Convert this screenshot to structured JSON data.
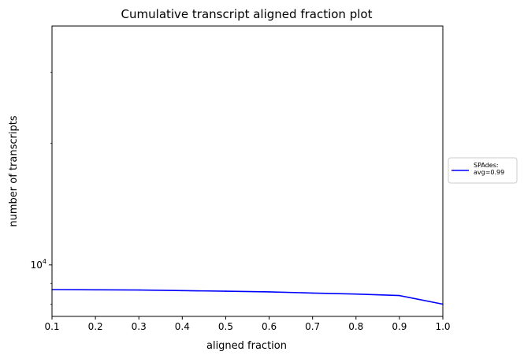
{
  "chart_data": {
    "type": "line",
    "title": "Cumulative transcript aligned fraction plot",
    "xlabel": "aligned fraction",
    "ylabel": "number of transcripts",
    "x": [
      0.1,
      0.2,
      0.3,
      0.4,
      0.5,
      0.6,
      0.7,
      0.8,
      0.9,
      1.0
    ],
    "xlim": [
      0.1,
      1.0
    ],
    "x_ticks": [
      "0.1",
      "0.2",
      "0.3",
      "0.4",
      "0.5",
      "0.6",
      "0.7",
      "0.8",
      "0.9",
      "1.0"
    ],
    "y_scale": "log",
    "ylim": [
      7460,
      39000
    ],
    "y_ticks": [
      {
        "value": 10000,
        "base": "10",
        "exp": "4"
      }
    ],
    "series": [
      {
        "name": "SPAdes:\navg=0.99",
        "legend_lines": [
          "SPAdes:",
          "avg=0.99"
        ],
        "color": "#0000ff",
        "values": [
          8690,
          8680,
          8670,
          8640,
          8610,
          8580,
          8520,
          8470,
          8400,
          8000
        ]
      }
    ],
    "legend_position": "right-outside",
    "grid": false
  }
}
